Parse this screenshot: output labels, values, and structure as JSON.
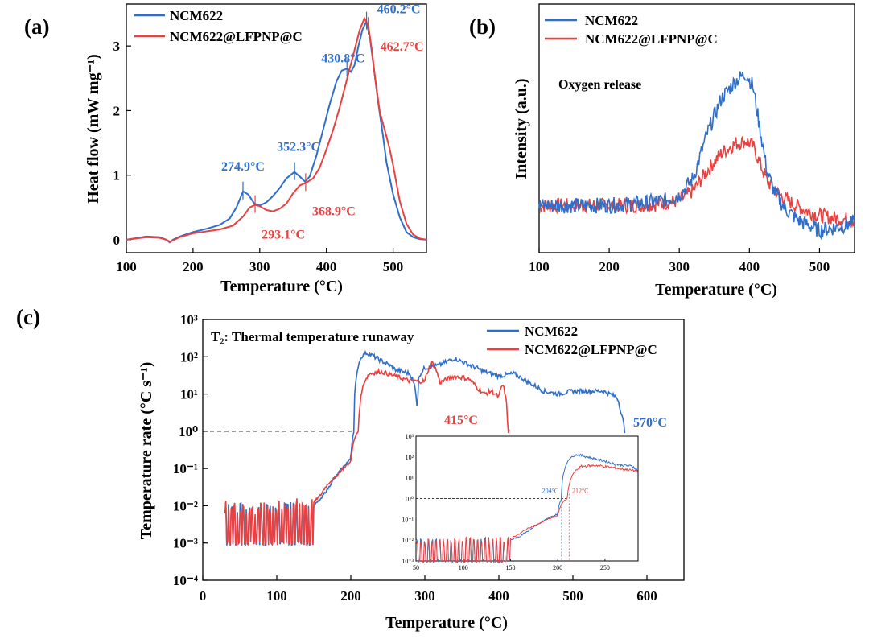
{
  "colors": {
    "ncm": "#2f6ec9",
    "lfp": "#e8413f",
    "axis": "#000000"
  },
  "chart_data": [
    {
      "id": "a",
      "panel_label": "(a)",
      "type": "line",
      "xlabel": "Temperature (°C)",
      "ylabel": "Heat flow (mW mg⁻¹)",
      "xlim": [
        100,
        550
      ],
      "ylim": [
        -0.2,
        3.65
      ],
      "xticks": [
        100,
        200,
        300,
        400,
        500
      ],
      "yticks": [
        0,
        1,
        2,
        3
      ],
      "series": [
        {
          "name": "NCM622",
          "x": [
            100,
            130,
            150,
            160,
            165,
            170,
            180,
            200,
            220,
            240,
            255,
            265,
            275,
            283,
            292,
            300,
            310,
            320,
            330,
            340,
            352,
            360,
            368,
            375,
            385,
            395,
            405,
            415,
            423,
            431,
            437,
            442,
            448,
            454,
            460,
            465,
            470,
            478,
            485,
            490,
            500,
            510,
            520,
            530,
            540,
            550
          ],
          "y": [
            0.0,
            0.05,
            0.04,
            0.0,
            -0.04,
            0.0,
            0.05,
            0.12,
            0.17,
            0.23,
            0.33,
            0.5,
            0.75,
            0.7,
            0.56,
            0.53,
            0.58,
            0.68,
            0.8,
            0.95,
            1.05,
            0.98,
            0.9,
            0.98,
            1.3,
            1.7,
            2.1,
            2.45,
            2.62,
            2.65,
            2.6,
            2.7,
            3.0,
            3.25,
            3.38,
            3.15,
            2.75,
            2.1,
            1.6,
            1.2,
            0.7,
            0.35,
            0.12,
            0.04,
            0.01,
            0.0
          ]
        },
        {
          "name": "NCM622@LFPNP@C",
          "x": [
            100,
            130,
            150,
            160,
            166,
            172,
            180,
            200,
            220,
            240,
            260,
            275,
            285,
            293,
            300,
            310,
            320,
            330,
            340,
            350,
            360,
            369,
            380,
            390,
            400,
            410,
            420,
            430,
            440,
            450,
            457,
            463,
            468,
            473,
            480,
            490,
            495,
            500,
            510,
            520,
            530,
            540,
            550
          ],
          "y": [
            0.0,
            0.04,
            0.03,
            0.0,
            -0.03,
            0.0,
            0.04,
            0.1,
            0.13,
            0.16,
            0.22,
            0.36,
            0.5,
            0.54,
            0.52,
            0.46,
            0.44,
            0.48,
            0.56,
            0.72,
            0.84,
            0.88,
            0.95,
            1.12,
            1.4,
            1.7,
            2.05,
            2.45,
            2.85,
            3.25,
            3.43,
            3.3,
            2.95,
            2.5,
            1.98,
            1.6,
            1.4,
            1.15,
            0.6,
            0.25,
            0.08,
            0.02,
            0.0
          ]
        }
      ],
      "legend": [
        "NCM622",
        "NCM622@LFPNP@C"
      ],
      "annotations": [
        {
          "text": "274.9°C",
          "series": "NCM622",
          "x": 274.9,
          "y": 0.75
        },
        {
          "text": "293.1°C",
          "series": "NCM622@LFPNP@C",
          "x": 293.1,
          "y": 0.54
        },
        {
          "text": "352.3°C",
          "series": "NCM622",
          "x": 352.3,
          "y": 1.05
        },
        {
          "text": "368.9°C",
          "series": "NCM622@LFPNP@C",
          "x": 368.9,
          "y": 0.88
        },
        {
          "text": "430.8°C",
          "series": "NCM622",
          "x": 430.8,
          "y": 2.65
        },
        {
          "text": "460.2°C",
          "series": "NCM622",
          "x": 460.2,
          "y": 3.38
        },
        {
          "text": "462.7°C",
          "series": "NCM622@LFPNP@C",
          "x": 462.7,
          "y": 3.3
        }
      ]
    },
    {
      "id": "b",
      "panel_label": "(b)",
      "type": "line",
      "xlabel": "Temperature (°C)",
      "ylabel": "Intensity (a.u.)",
      "xlim": [
        100,
        550
      ],
      "ylim": [
        0,
        1
      ],
      "xticks": [
        100,
        200,
        300,
        400,
        500
      ],
      "yticks": [],
      "annotation_text": "Oxygen release",
      "series": [
        {
          "name": "NCM622",
          "x": [
            100,
            150,
            200,
            250,
            280,
            300,
            320,
            340,
            360,
            380,
            395,
            405,
            415,
            425,
            435,
            450,
            470,
            500,
            520,
            550
          ],
          "y": [
            0.19,
            0.19,
            0.19,
            0.2,
            0.21,
            0.23,
            0.3,
            0.48,
            0.62,
            0.69,
            0.72,
            0.67,
            0.5,
            0.33,
            0.25,
            0.18,
            0.13,
            0.09,
            0.1,
            0.12
          ]
        },
        {
          "name": "NCM622@LFPNP@C",
          "x": [
            100,
            150,
            200,
            250,
            280,
            300,
            320,
            340,
            360,
            380,
            395,
            405,
            415,
            425,
            440,
            460,
            480,
            500,
            520,
            550
          ],
          "y": [
            0.19,
            0.19,
            0.19,
            0.19,
            0.2,
            0.21,
            0.25,
            0.33,
            0.4,
            0.44,
            0.45,
            0.43,
            0.36,
            0.29,
            0.24,
            0.2,
            0.17,
            0.15,
            0.14,
            0.13
          ]
        }
      ],
      "legend": [
        "NCM622",
        "NCM622@LFPNP@C"
      ]
    },
    {
      "id": "c",
      "panel_label": "(c)",
      "type": "line",
      "yscale": "log",
      "xlabel": "Temperature (°C)",
      "ylabel": "Temperature rate (°C s⁻¹)",
      "xlim": [
        0,
        650
      ],
      "ylim_exp": [
        -4,
        3
      ],
      "xticks": [
        0,
        100,
        200,
        300,
        400,
        500,
        600
      ],
      "ytick_labels": [
        "10⁻⁴",
        "10⁻³",
        "10⁻²",
        "10⁻¹",
        "10⁰",
        "10¹",
        "10²",
        "10³"
      ],
      "reference_line": {
        "y": 1,
        "x_end": 204,
        "style": "dashed"
      },
      "title_text": "T₂: Thermal temperature runaway",
      "series": [
        {
          "name": "NCM622",
          "end_label": "570°C",
          "x": [
            30,
            60,
            90,
            120,
            140,
            150,
            160,
            170,
            180,
            190,
            200,
            204,
            208,
            212,
            220,
            240,
            260,
            280,
            288,
            290,
            292,
            300,
            320,
            340,
            360,
            380,
            400,
            420,
            440,
            460,
            480,
            500,
            520,
            540,
            560,
            565,
            570
          ],
          "y": [
            0.01,
            0.008,
            0.008,
            0.009,
            0.008,
            0.01,
            0.015,
            0.03,
            0.06,
            0.11,
            0.18,
            1,
            30,
            80,
            130,
            80,
            45,
            35,
            10,
            2,
            30,
            50,
            60,
            90,
            60,
            40,
            30,
            35,
            20,
            12,
            10,
            12,
            12,
            12,
            8,
            3,
            1
          ]
        },
        {
          "name": "NCM622@LFPNP@C",
          "end_label": "415°C",
          "x": [
            30,
            60,
            90,
            120,
            140,
            150,
            160,
            170,
            180,
            190,
            200,
            206,
            210,
            212,
            218,
            225,
            240,
            260,
            280,
            300,
            310,
            320,
            340,
            360,
            370,
            380,
            390,
            400,
            405,
            410,
            412,
            415
          ],
          "y": [
            0.01,
            0.008,
            0.009,
            0.012,
            0.01,
            0.012,
            0.02,
            0.04,
            0.06,
            0.1,
            0.15,
            0.7,
            1,
            4,
            20,
            35,
            40,
            30,
            22,
            22,
            70,
            20,
            30,
            25,
            15,
            10,
            12,
            8,
            18,
            6,
            1,
            1
          ]
        }
      ],
      "legend": [
        "NCM622",
        "NCM622@LFPNP@C"
      ],
      "inset": {
        "xlim": [
          50,
          285
        ],
        "xticks": [
          50,
          100,
          150,
          200,
          250
        ],
        "ytick_labels": [
          "10⁻³",
          "10⁻²",
          "10⁻¹",
          "10⁰",
          "10¹",
          "10²",
          "10³"
        ],
        "ylim_exp": [
          -3,
          3
        ],
        "markers": [
          {
            "text": "204°C",
            "x": 204,
            "series": "NCM622"
          },
          {
            "text": "212°C",
            "x": 212,
            "series": "NCM622@LFPNP@C"
          }
        ]
      }
    }
  ]
}
